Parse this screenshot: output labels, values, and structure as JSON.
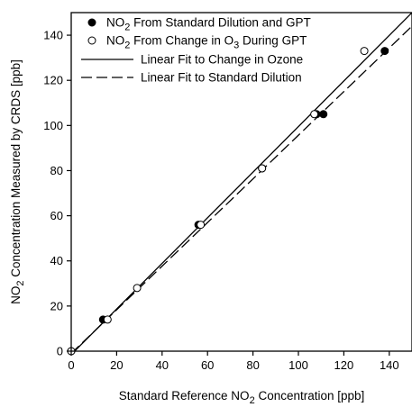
{
  "chart_data": {
    "type": "scatter",
    "xlabel": {
      "pre": "Standard Reference NO",
      "sub": "2",
      "post": " Concentration [ppb]"
    },
    "ylabel": {
      "pre": "NO",
      "sub": "2",
      "post": " Concentration Measured by CRDS [ppb]"
    },
    "xlim": [
      0,
      150
    ],
    "ylim": [
      0,
      150
    ],
    "xticks": [
      0,
      20,
      40,
      60,
      80,
      100,
      120,
      140
    ],
    "yticks": [
      0,
      20,
      40,
      60,
      80,
      100,
      120,
      140
    ],
    "grid": false,
    "legend_position": "top-left",
    "series": [
      {
        "name": {
          "pre": "NO",
          "sub": "2",
          "mid": " From Standard Dilution and GPT",
          "sub2": "",
          "post": ""
        },
        "kind": "points",
        "marker": "filled-circle",
        "x": [
          0,
          14,
          56,
          84,
          108,
          111,
          138
        ],
        "y": [
          0,
          14,
          56,
          81,
          105,
          105,
          133
        ]
      },
      {
        "name": {
          "pre": "NO",
          "sub": "2",
          "mid": " From Change in O",
          "sub2": "3",
          "post": " During GPT"
        },
        "kind": "points",
        "marker": "open-circle",
        "x": [
          0,
          16,
          29,
          57,
          84,
          107,
          129
        ],
        "y": [
          0,
          14,
          28,
          56,
          81,
          105,
          133
        ]
      },
      {
        "name": {
          "pre": "Linear Fit to Change in Ozone",
          "sub": "",
          "mid": "",
          "sub2": "",
          "post": ""
        },
        "kind": "line",
        "style": "solid",
        "x": [
          0,
          150
        ],
        "y": [
          -1.5,
          150
        ]
      },
      {
        "name": {
          "pre": "Linear Fit to Standard Dilution",
          "sub": "",
          "mid": "",
          "sub2": "",
          "post": ""
        },
        "kind": "line",
        "style": "dashed",
        "x": [
          0,
          150
        ],
        "y": [
          -1,
          144
        ]
      }
    ]
  }
}
